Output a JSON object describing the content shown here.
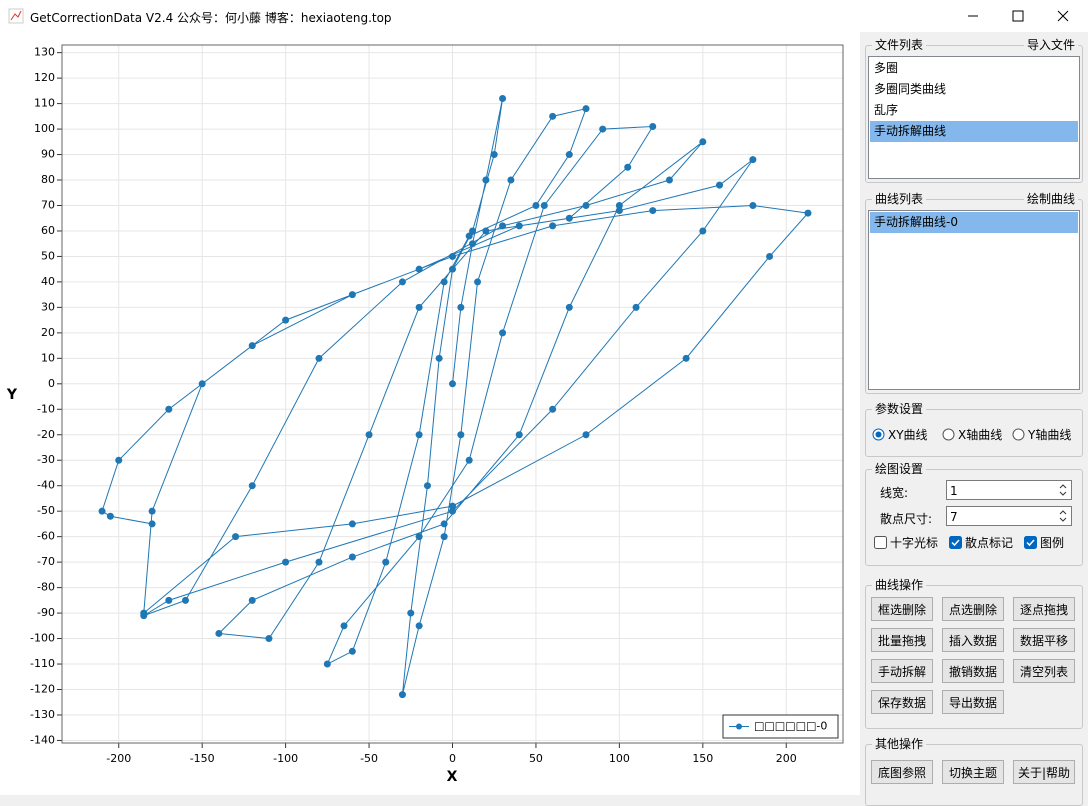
{
  "window": {
    "title": "GetCorrectionData V2.4 公众号：何小藤 博客：hexiaoteng.top"
  },
  "chart_data": {
    "type": "line",
    "xlabel": "X",
    "ylabel": "Y",
    "x": [
      0,
      5,
      12,
      20,
      30,
      25,
      12,
      0,
      -8,
      -15,
      -25,
      -30,
      -20,
      -5,
      5,
      15,
      35,
      60,
      80,
      70,
      50,
      10,
      -5,
      -20,
      -40,
      -60,
      -75,
      -65,
      -20,
      10,
      30,
      55,
      90,
      120,
      105,
      70,
      20,
      -20,
      -50,
      -80,
      -110,
      -140,
      -120,
      -60,
      -5,
      40,
      70,
      100,
      150,
      130,
      80,
      30,
      -30,
      -80,
      -120,
      -160,
      -185,
      -170,
      -100,
      0,
      60,
      110,
      150,
      180,
      160,
      100,
      40,
      -20,
      -100,
      -150,
      -180,
      -185,
      -130,
      -60,
      0,
      80,
      140,
      190,
      213,
      180,
      120,
      60,
      0,
      -60,
      -120,
      -170,
      -200,
      -210,
      -205,
      -180
    ],
    "series": [
      {
        "name": "□□□□□□-0",
        "color": "#1f77b4",
        "values": [
          0,
          30,
          55,
          80,
          112,
          90,
          60,
          45,
          10,
          -40,
          -90,
          -122,
          -95,
          -60,
          -20,
          40,
          80,
          105,
          108,
          90,
          70,
          58,
          40,
          -20,
          -70,
          -105,
          -110,
          -95,
          -60,
          -30,
          20,
          70,
          100,
          101,
          85,
          65,
          60,
          30,
          -20,
          -70,
          -100,
          -98,
          -85,
          -68,
          -55,
          -20,
          30,
          70,
          95,
          80,
          70,
          62,
          40,
          10,
          -40,
          -85,
          -91,
          -85,
          -70,
          -50,
          -10,
          30,
          60,
          88,
          78,
          68,
          62,
          45,
          25,
          0,
          -50,
          -90,
          -60,
          -55,
          -48,
          -20,
          10,
          50,
          67,
          70,
          68,
          62,
          50,
          35,
          15,
          -10,
          -30,
          -50,
          -52,
          -55
        ]
      }
    ],
    "xlim": [
      -234,
      234
    ],
    "xticks": [
      -200,
      -150,
      -100,
      -50,
      0,
      50,
      100,
      150,
      200
    ],
    "ylim": [
      -141,
      133
    ],
    "yticks": [
      -140,
      -130,
      -120,
      -110,
      -100,
      -90,
      -80,
      -70,
      -60,
      -50,
      -40,
      -30,
      -20,
      -10,
      0,
      10,
      20,
      30,
      40,
      50,
      60,
      70,
      80,
      90,
      100,
      110,
      120,
      130
    ],
    "grid": true,
    "legend": "lower right"
  },
  "file_panel": {
    "title": "文件列表",
    "action": "导入文件",
    "items": [
      "多圈",
      "多圈同类曲线",
      "乱序",
      "手动拆解曲线"
    ],
    "selected": 3
  },
  "curve_panel": {
    "title": "曲线列表",
    "action": "绘制曲线",
    "items": [
      "手动拆解曲线-0"
    ],
    "selected": 0
  },
  "params": {
    "title": "参数设置",
    "options": [
      "XY曲线",
      "X轴曲线",
      "Y轴曲线"
    ],
    "selected": 0
  },
  "plot_settings": {
    "title": "绘图设置",
    "fields": [
      {
        "label": "线宽:",
        "value": 1
      },
      {
        "label": "散点尺寸:",
        "value": 7
      }
    ],
    "checks": [
      {
        "label": "十字光标",
        "checked": false
      },
      {
        "label": "散点标记",
        "checked": true
      },
      {
        "label": "图例",
        "checked": true
      }
    ]
  },
  "curve_ops": {
    "title": "曲线操作",
    "buttons": [
      "框选删除",
      "点选删除",
      "逐点拖拽",
      "批量拖拽",
      "插入数据",
      "数据平移",
      "手动拆解",
      "撤销数据",
      "清空列表",
      "保存数据",
      "导出数据"
    ]
  },
  "other_ops": {
    "title": "其他操作",
    "buttons": [
      "底图参照",
      "切换主题",
      "关于|帮助"
    ]
  }
}
